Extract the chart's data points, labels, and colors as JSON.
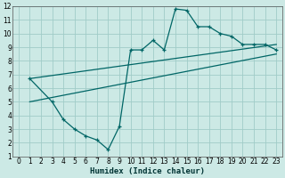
{
  "xlabel": "Humidex (Indice chaleur)",
  "bg_color": "#cce9e5",
  "grid_color": "#a0ccc8",
  "line_color": "#006666",
  "xlim": [
    -0.5,
    23.5
  ],
  "ylim": [
    1,
    12
  ],
  "xticks": [
    0,
    1,
    2,
    3,
    4,
    5,
    6,
    7,
    8,
    9,
    10,
    11,
    12,
    13,
    14,
    15,
    16,
    17,
    18,
    19,
    20,
    21,
    22,
    23
  ],
  "yticks": [
    1,
    2,
    3,
    4,
    5,
    6,
    7,
    8,
    9,
    10,
    11,
    12
  ],
  "line1_x": [
    1,
    3,
    4,
    5,
    6,
    7,
    8,
    9,
    10,
    11,
    12,
    13,
    14,
    15,
    16,
    17,
    18,
    19,
    20,
    21,
    22,
    23
  ],
  "line1_y": [
    6.7,
    5.0,
    3.7,
    3.0,
    2.5,
    2.2,
    1.5,
    3.2,
    8.8,
    8.8,
    9.5,
    8.8,
    11.8,
    11.7,
    10.5,
    10.5,
    10.0,
    9.8,
    9.2,
    9.2,
    9.2,
    8.8
  ],
  "line2_x": [
    1,
    23
  ],
  "line2_y": [
    6.7,
    9.2
  ],
  "line3_x": [
    1,
    23
  ],
  "line3_y": [
    5.0,
    8.5
  ]
}
